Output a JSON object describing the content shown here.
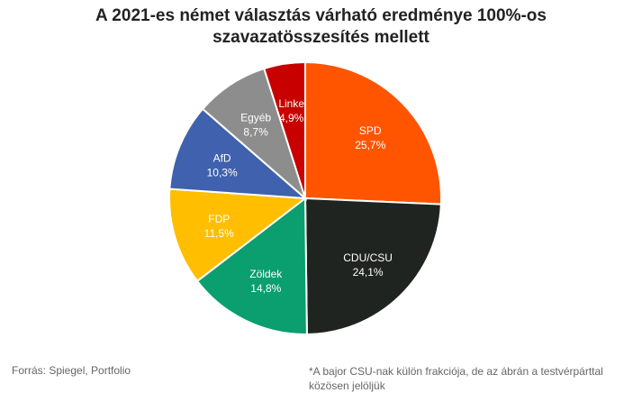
{
  "title_lines": [
    "A 2021-es német választás várható eredménye 100%-os",
    "szavazatösszesítés mellett"
  ],
  "source": "Forrás:  Spiegel, Portfolio",
  "note": "*A bajor CSU-nak külön frakciója, de az ábrán a testvérpárttal közösen jelöljük",
  "chart_data": {
    "type": "pie",
    "title": "A 2021-es német választás várható eredménye 100%-os szavazatösszesítés mellett",
    "start_angle_deg": 0,
    "direction": "clockwise",
    "slices": [
      {
        "label": "SPD",
        "value": 25.7,
        "value_label": "25,7%",
        "color": "#FF5500"
      },
      {
        "label": "CDU/CSU",
        "value": 24.1,
        "value_label": "24,1%",
        "color": "#1F2420"
      },
      {
        "label": "Zöldek",
        "value": 14.8,
        "value_label": "14,8%",
        "color": "#0B9E6E"
      },
      {
        "label": "FDP",
        "value": 11.5,
        "value_label": "11,5%",
        "color": "#FFBE00"
      },
      {
        "label": "AfD",
        "value": 10.3,
        "value_label": "10,3%",
        "color": "#3F61AE"
      },
      {
        "label": "Egyéb",
        "value": 8.7,
        "value_label": "8,7%",
        "color": "#8D8D8D"
      },
      {
        "label": "Linke",
        "value": 4.9,
        "value_label": "4,9%",
        "color": "#C80000"
      }
    ]
  }
}
